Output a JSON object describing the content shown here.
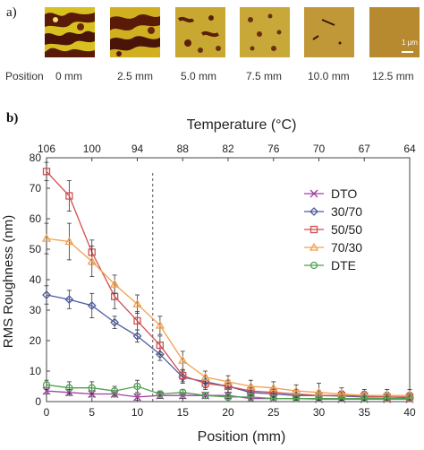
{
  "panel_a": {
    "letter": "a)",
    "position_label": "Position",
    "scale_label": "1 μm",
    "positions": [
      "0 mm",
      "2.5 mm",
      "5.0 mm",
      "7.5 mm",
      "10.0 mm",
      "12.5 mm"
    ]
  },
  "panel_b": {
    "letter": "b)"
  },
  "chart_data": {
    "type": "line",
    "title": "",
    "xlabel": "Position (mm)",
    "ylabel": "RMS Roughness (nm)",
    "top_axis_label": "Temperature (°C)",
    "top_ticks": [
      {
        "pos": 0,
        "label": "106"
      },
      {
        "pos": 5,
        "label": "100"
      },
      {
        "pos": 10,
        "label": "94"
      },
      {
        "pos": 15,
        "label": "88"
      },
      {
        "pos": 20,
        "label": "82"
      },
      {
        "pos": 25,
        "label": "76"
      },
      {
        "pos": 30,
        "label": "70"
      },
      {
        "pos": 35,
        "label": "67"
      },
      {
        "pos": 40,
        "label": "64"
      }
    ],
    "xlim": [
      0,
      40
    ],
    "ylim": [
      0,
      80
    ],
    "xticks": [
      0,
      5,
      10,
      15,
      20,
      25,
      30,
      35,
      40
    ],
    "yticks": [
      0,
      10,
      20,
      30,
      40,
      50,
      60,
      70,
      80
    ],
    "dashed_line_x": 11.7,
    "legend_position": "right",
    "x": [
      0,
      2.5,
      5,
      7.5,
      10,
      12.5,
      15,
      17.5,
      20,
      22.5,
      25,
      27.5,
      30,
      32.5,
      35,
      37.5,
      40
    ],
    "series": [
      {
        "name": "DTO",
        "color": "#a040a0",
        "marker": "x",
        "values": [
          3.5,
          3,
          2.5,
          2.5,
          1.5,
          2,
          2,
          2,
          2,
          1,
          1,
          1,
          0.8,
          0.8,
          0.8,
          0.8,
          0.8
        ],
        "errors": [
          1,
          1,
          1,
          1,
          1,
          1,
          1,
          1,
          1,
          1,
          1,
          1,
          1,
          1,
          1,
          1,
          1
        ]
      },
      {
        "name": "30/70",
        "color": "#4f5aa0",
        "marker": "diamond",
        "values": [
          35,
          33.5,
          31.5,
          26,
          21.5,
          15.5,
          8,
          6.5,
          5,
          3,
          2.5,
          2,
          2,
          1.8,
          1.5,
          1.5,
          1.3
        ],
        "errors": [
          3,
          3,
          4,
          2,
          2,
          2,
          2,
          2,
          2,
          1.5,
          1.5,
          1.5,
          1.5,
          1.5,
          1.5,
          1.5,
          1.5
        ]
      },
      {
        "name": "50/50",
        "color": "#d05050",
        "marker": "square",
        "values": [
          75.5,
          67.5,
          49,
          34.5,
          26.5,
          18.5,
          8.5,
          6,
          5,
          3.5,
          3,
          2.5,
          2,
          2,
          1.8,
          1.5,
          1.5
        ],
        "errors": [
          3,
          5,
          4,
          4,
          3,
          3,
          2,
          2,
          2,
          1.5,
          1.5,
          1.5,
          1.5,
          1.5,
          1.5,
          1.5,
          1.5
        ]
      },
      {
        "name": "70/30",
        "color": "#f0a050",
        "marker": "triangle",
        "values": [
          53.5,
          52.5,
          46,
          38.5,
          32,
          25,
          13.5,
          8,
          6.5,
          5,
          4.5,
          3.5,
          3,
          2.5,
          2,
          2,
          2
        ],
        "errors": [
          5,
          6,
          5,
          3,
          3,
          3,
          3,
          2,
          2,
          2,
          2,
          2,
          3,
          2,
          2,
          2,
          2
        ]
      },
      {
        "name": "DTE",
        "color": "#50a050",
        "marker": "circle",
        "values": [
          5.5,
          4.5,
          4.5,
          3.5,
          5,
          2.5,
          3,
          2,
          1.5,
          1.5,
          1,
          1,
          1,
          1,
          1,
          1,
          1
        ],
        "errors": [
          1.5,
          2,
          2,
          1.5,
          2,
          1,
          1,
          1,
          1,
          1,
          1,
          1,
          1,
          1,
          1,
          1,
          1
        ]
      }
    ]
  }
}
